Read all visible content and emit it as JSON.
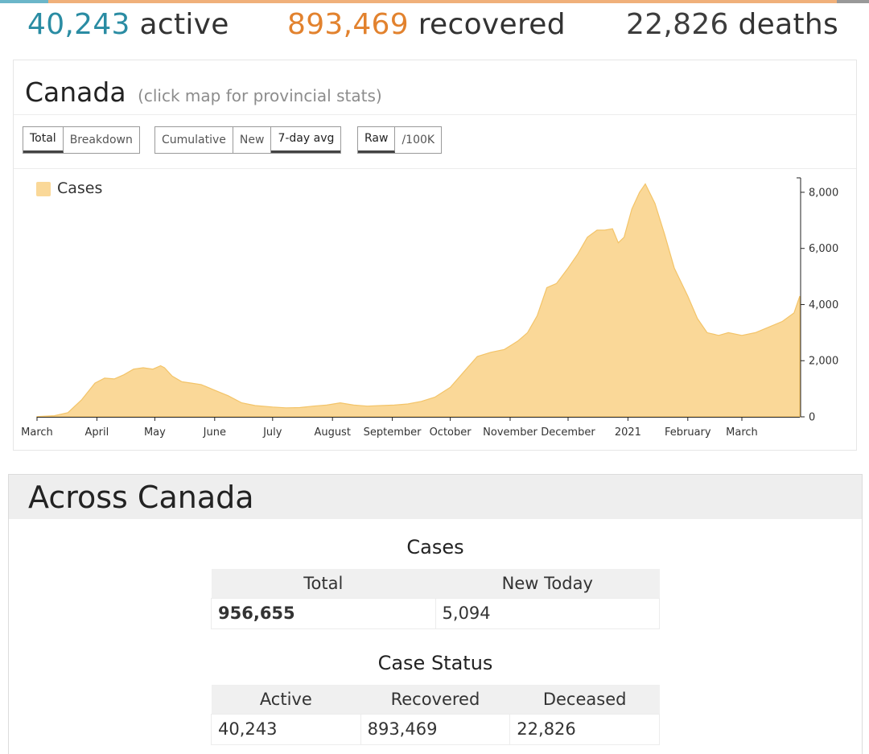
{
  "summary": {
    "active_value": "40,243",
    "active_label": "active",
    "recovered_value": "893,469",
    "recovered_label": "recovered",
    "deaths_value": "22,826",
    "deaths_label": "deaths",
    "colors": {
      "active": "#2a8ca3",
      "recovered": "#e2822e",
      "deaths": "#3d3d3d",
      "strip_left": "#6bb6c9",
      "strip_mid": "#f0b07a",
      "strip_right": "#999999"
    }
  },
  "card": {
    "title": "Canada",
    "subtitle": "(click map for provincial stats)",
    "button_groups": [
      {
        "buttons": [
          {
            "label": "Total",
            "active": true
          },
          {
            "label": "Breakdown",
            "active": false
          }
        ]
      },
      {
        "buttons": [
          {
            "label": "Cumulative",
            "active": false
          },
          {
            "label": "New",
            "active": false
          },
          {
            "label": "7-day avg",
            "active": true
          }
        ]
      },
      {
        "buttons": [
          {
            "label": "Raw",
            "active": true
          },
          {
            "label": "/100K",
            "active": false
          }
        ]
      }
    ]
  },
  "chart_data": {
    "type": "area",
    "title": "",
    "xlabel": "",
    "ylabel": "",
    "legend": {
      "position": "top-left",
      "entries": [
        "Cases"
      ]
    },
    "color": "#fad898",
    "stroke": "#f3c469",
    "grid": false,
    "y_axis_side": "right",
    "ylim": [
      0,
      8400
    ],
    "yticks": [
      0,
      2000,
      4000,
      6000,
      8000
    ],
    "ytick_labels": [
      "0",
      "2,000",
      "4,000",
      "6,000",
      "8,000"
    ],
    "xlim": [
      "2020-03-01",
      "2021-03-31"
    ],
    "xticks": [
      "2020-03-01",
      "2020-04-01",
      "2020-05-01",
      "2020-06-01",
      "2020-07-01",
      "2020-08-01",
      "2020-09-01",
      "2020-10-01",
      "2020-11-01",
      "2020-12-01",
      "2021-01-01",
      "2021-02-01",
      "2021-03-01"
    ],
    "xtick_labels": [
      "March",
      "April",
      "May",
      "June",
      "July",
      "August",
      "September",
      "October",
      "November",
      "December",
      "2021",
      "February",
      "March"
    ],
    "series": [
      {
        "name": "Cases",
        "x": [
          "2020-03-01",
          "2020-03-10",
          "2020-03-17",
          "2020-03-24",
          "2020-03-31",
          "2020-04-05",
          "2020-04-10",
          "2020-04-15",
          "2020-04-20",
          "2020-04-25",
          "2020-04-30",
          "2020-05-04",
          "2020-05-06",
          "2020-05-10",
          "2020-05-15",
          "2020-05-20",
          "2020-05-25",
          "2020-06-01",
          "2020-06-08",
          "2020-06-15",
          "2020-06-22",
          "2020-07-01",
          "2020-07-08",
          "2020-07-15",
          "2020-07-22",
          "2020-07-29",
          "2020-08-05",
          "2020-08-12",
          "2020-08-19",
          "2020-08-26",
          "2020-09-02",
          "2020-09-09",
          "2020-09-16",
          "2020-09-23",
          "2020-10-01",
          "2020-10-08",
          "2020-10-15",
          "2020-10-22",
          "2020-10-29",
          "2020-11-05",
          "2020-11-10",
          "2020-11-15",
          "2020-11-20",
          "2020-11-25",
          "2020-12-01",
          "2020-12-06",
          "2020-12-11",
          "2020-12-16",
          "2020-12-20",
          "2020-12-24",
          "2020-12-27",
          "2020-12-30",
          "2021-01-03",
          "2021-01-07",
          "2021-01-10",
          "2021-01-15",
          "2021-01-20",
          "2021-01-25",
          "2021-02-01",
          "2021-02-06",
          "2021-02-11",
          "2021-02-17",
          "2021-02-22",
          "2021-03-01",
          "2021-03-08",
          "2021-03-15",
          "2021-03-22",
          "2021-03-28",
          "2021-03-31"
        ],
        "values": [
          10,
          40,
          150,
          600,
          1200,
          1380,
          1350,
          1500,
          1700,
          1750,
          1700,
          1820,
          1750,
          1450,
          1250,
          1200,
          1150,
          950,
          750,
          500,
          400,
          350,
          320,
          330,
          380,
          420,
          500,
          420,
          380,
          400,
          420,
          460,
          550,
          700,
          1050,
          1600,
          2150,
          2300,
          2400,
          2700,
          3000,
          3600,
          4600,
          4750,
          5300,
          5800,
          6400,
          6650,
          6650,
          6700,
          6200,
          6400,
          7400,
          8000,
          8300,
          7600,
          6500,
          5300,
          4300,
          3500,
          3000,
          2900,
          3000,
          2900,
          3000,
          3200,
          3400,
          3700,
          4300
        ]
      }
    ]
  },
  "across": {
    "title": "Across Canada",
    "cases": {
      "title": "Cases",
      "headers": [
        "Total",
        "New Today"
      ],
      "values": [
        "956,655",
        "5,094"
      ]
    },
    "status": {
      "title": "Case Status",
      "headers": [
        "Active",
        "Recovered",
        "Deceased"
      ],
      "values": [
        "40,243",
        "893,469",
        "22,826"
      ]
    }
  }
}
